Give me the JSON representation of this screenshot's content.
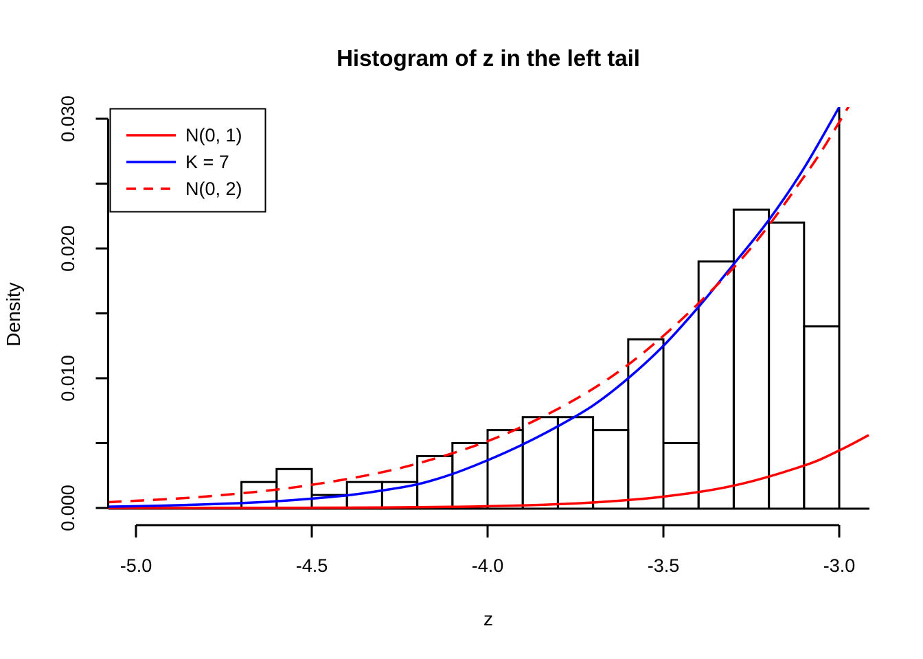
{
  "title": "Histogram of z in the left tail",
  "background": "#ffffff",
  "axes": {
    "x": {
      "label": "z",
      "ticks": [
        {
          "v": -5.0,
          "label": "-5.0"
        },
        {
          "v": -4.5,
          "label": "-4.5"
        },
        {
          "v": -4.0,
          "label": "-4.0"
        },
        {
          "v": -3.5,
          "label": "-3.5"
        },
        {
          "v": -3.0,
          "label": "-3.0"
        }
      ],
      "range": [
        -5.078,
        -2.916
      ]
    },
    "y": {
      "label": "Density",
      "ticks": [
        {
          "v": 0.0,
          "label": "0.000"
        },
        {
          "v": 0.005,
          "label": ""
        },
        {
          "v": 0.01,
          "label": "0.010"
        },
        {
          "v": 0.015,
          "label": ""
        },
        {
          "v": 0.02,
          "label": "0.020"
        },
        {
          "v": 0.025,
          "label": ""
        },
        {
          "v": 0.03,
          "label": "0.030"
        }
      ],
      "range": [
        0,
        0.0311
      ]
    }
  },
  "legend": {
    "entries": [
      {
        "label": "N(0, 1)",
        "color": "#ff0000",
        "style": "solid"
      },
      {
        "label": "K = 7",
        "color": "#0000ff",
        "style": "solid"
      },
      {
        "label": "N(0, 2)",
        "color": "#ff0000",
        "style": "dashed"
      }
    ]
  },
  "colors": {
    "axis": "#000000",
    "bar_outline": "#000000",
    "red_curve": "#ff0000",
    "blue_curve": "#0000ff"
  },
  "chart_data": {
    "type": "histogram",
    "title": "Histogram of z in the left tail",
    "xlabel": "z",
    "ylabel": "Density",
    "xlim": [
      -5.078,
      -2.916
    ],
    "ylim": [
      0,
      0.0311
    ],
    "bin_width": 0.1,
    "bin_starts": [
      -4.7,
      -4.6,
      -4.5,
      -4.4,
      -4.3,
      -4.2,
      -4.1,
      -4.0,
      -3.9,
      -3.8,
      -3.7,
      -3.6,
      -3.5,
      -3.4,
      -3.3,
      -3.2,
      -3.1,
      -3.0
    ],
    "densities": [
      0.002,
      0.003,
      0.001,
      0.002,
      0.002,
      0.004,
      0.005,
      0.006,
      0.007,
      0.007,
      0.006,
      0.013,
      0.005,
      0.019,
      0.023,
      0.022,
      0.014,
      0.032
    ],
    "note": "last bar (-3.0 to -2.9) extends above the visible plot area and is clipped at top and right",
    "series": [
      {
        "name": "N(0, 1)",
        "color": "#ff0000",
        "style": "solid",
        "points": [
          [
            -5.08,
            1e-06
          ],
          [
            -4.9,
            2.4e-06
          ],
          [
            -4.7,
            6.4e-06
          ],
          [
            -4.5,
            1.6e-05
          ],
          [
            -4.3,
            3.85e-05
          ],
          [
            -4.1,
            8.93e-05
          ],
          [
            -3.9,
            0.000199
          ],
          [
            -3.7,
            0.000425
          ],
          [
            -3.5,
            0.000873
          ],
          [
            -3.3,
            0.001723
          ],
          [
            -3.1,
            0.003267
          ],
          [
            -3.0,
            0.004432
          ],
          [
            -2.916,
            0.005616
          ]
        ]
      },
      {
        "name": "K = 7",
        "color": "#0000ff",
        "style": "solid",
        "points": [
          [
            -5.08,
            0.0001
          ],
          [
            -4.9,
            0.0002
          ],
          [
            -4.7,
            0.00038
          ],
          [
            -4.6,
            0.00052
          ],
          [
            -4.5,
            0.00072
          ],
          [
            -4.4,
            0.00097
          ],
          [
            -4.3,
            0.00135
          ],
          [
            -4.2,
            0.00182
          ],
          [
            -4.1,
            0.00262
          ],
          [
            -4.0,
            0.00368
          ],
          [
            -3.9,
            0.0049
          ],
          [
            -3.8,
            0.0063
          ],
          [
            -3.7,
            0.0079
          ],
          [
            -3.6,
            0.01
          ],
          [
            -3.5,
            0.0125
          ],
          [
            -3.4,
            0.0155
          ],
          [
            -3.3,
            0.0188
          ],
          [
            -3.2,
            0.0222
          ],
          [
            -3.1,
            0.0262
          ],
          [
            -3.0,
            0.0309
          ]
        ]
      },
      {
        "name": "N(0, 2)",
        "color": "#ff0000",
        "style": "dashed",
        "points": [
          [
            -5.08,
            0.000445
          ],
          [
            -4.8,
            0.000889
          ],
          [
            -4.5,
            0.001786
          ],
          [
            -4.2,
            0.00342
          ],
          [
            -3.9,
            0.006293
          ],
          [
            -3.6,
            0.011048
          ],
          [
            -3.3,
            0.018526
          ],
          [
            -3.1,
            0.025538
          ],
          [
            -3.0,
            0.029733
          ],
          [
            -2.92,
            0.03346
          ]
        ]
      }
    ]
  }
}
